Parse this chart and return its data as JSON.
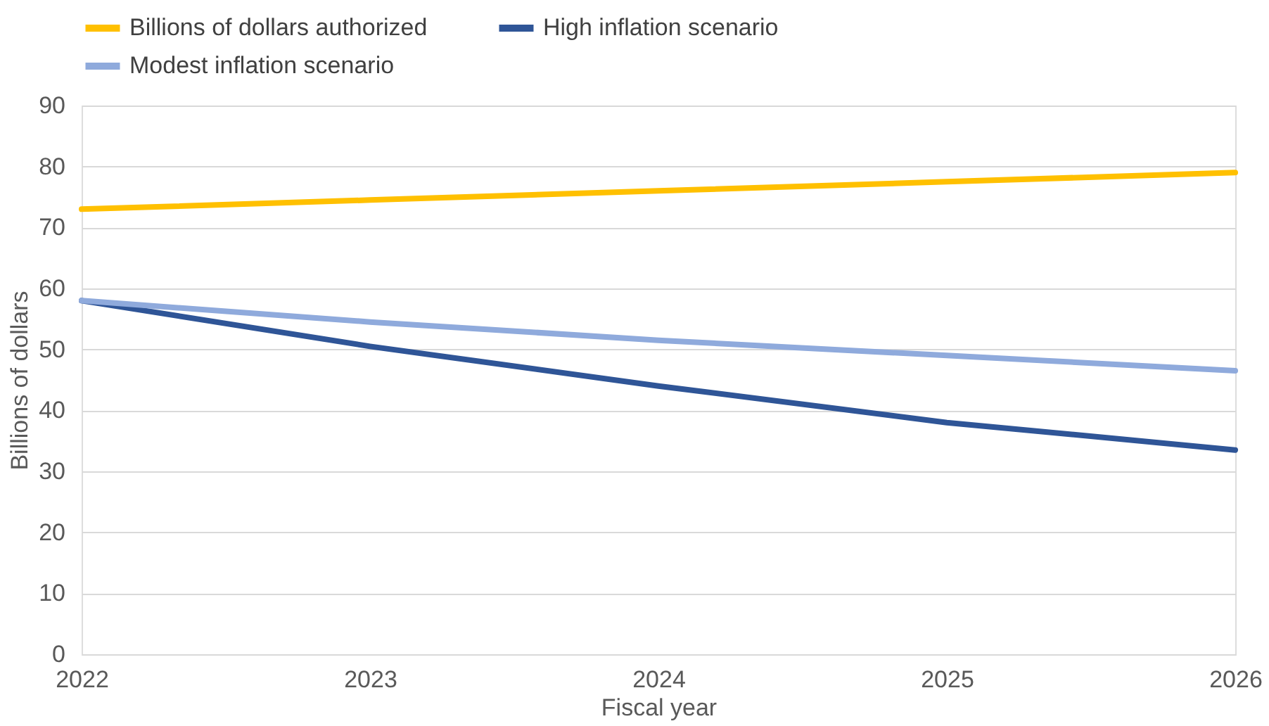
{
  "chart_data": {
    "type": "line",
    "xlabel": "Fiscal year",
    "ylabel": "Billions of dollars",
    "x": [
      2022,
      2023,
      2024,
      2025,
      2026
    ],
    "series": [
      {
        "name": "Billions of dollars authorized",
        "color": "#ffc000",
        "values": [
          73,
          74.5,
          76,
          77.5,
          79
        ]
      },
      {
        "name": "High inflation scenario",
        "color": "#2f5597",
        "values": [
          58,
          50.5,
          44,
          38,
          33.5
        ]
      },
      {
        "name": "Modest inflation scenario",
        "color": "#8faadc",
        "values": [
          58,
          54.5,
          51.5,
          49,
          46.5
        ]
      }
    ],
    "xlim": [
      2022,
      2026
    ],
    "xticks": [
      2022,
      2023,
      2024,
      2025,
      2026
    ],
    "ylim": [
      0,
      90
    ],
    "yticks": [
      0,
      10,
      20,
      30,
      40,
      50,
      60,
      70,
      80,
      90
    ],
    "grid": "y",
    "legend": "top",
    "marker": "none",
    "line_style": "solid"
  }
}
